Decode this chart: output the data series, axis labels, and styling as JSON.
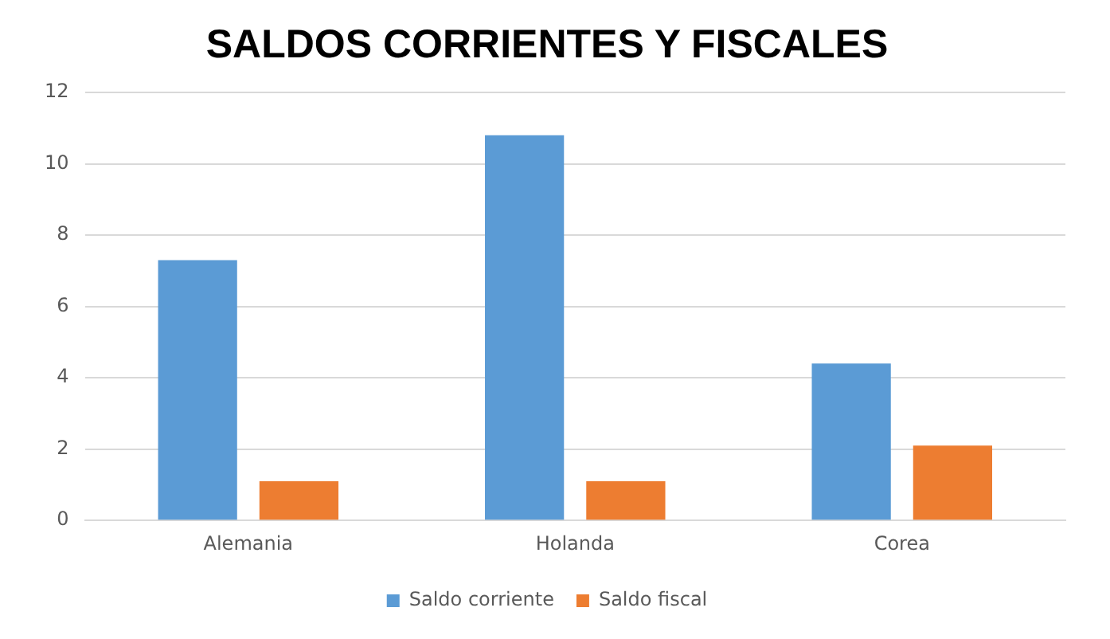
{
  "chart_data": {
    "type": "bar",
    "title": "SALDOS CORRIENTES Y FISCALES",
    "categories": [
      "Alemania",
      "Holanda",
      "Corea"
    ],
    "series": [
      {
        "name": "Saldo corriente",
        "color": "#5b9bd5",
        "values": [
          7.3,
          10.8,
          4.4
        ]
      },
      {
        "name": "Saldo fiscal",
        "color": "#ed7d31",
        "values": [
          1.1,
          1.1,
          2.1
        ]
      }
    ],
    "ylim": [
      0,
      12
    ],
    "yticks": [
      0,
      2,
      4,
      6,
      8,
      10,
      12
    ],
    "grid": "y",
    "legend": "bottom"
  }
}
